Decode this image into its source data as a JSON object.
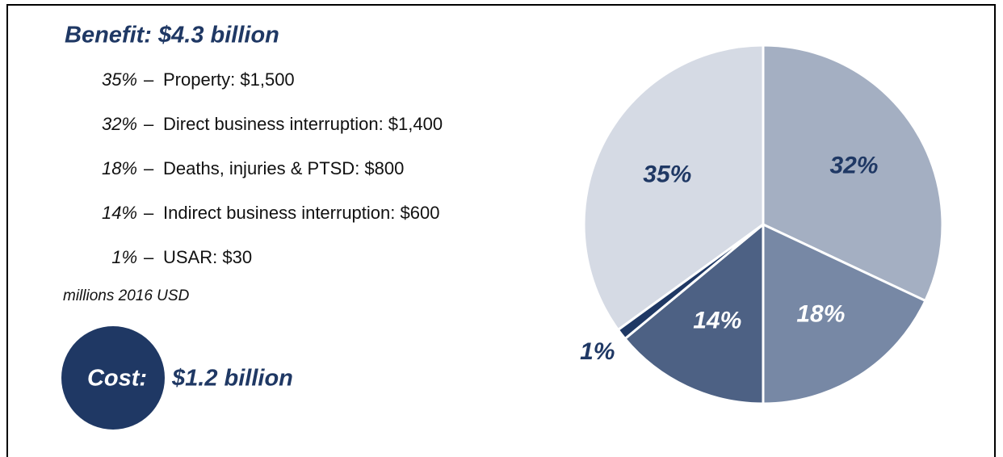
{
  "chart_data": {
    "type": "pie",
    "title": "Benefit: $4.3 billion",
    "categories": [
      "Property: $1,500",
      "Direct business interruption: $1,400",
      "Deaths, injuries & PTSD: $800",
      "Indirect business interruption: $600",
      "USAR: $30"
    ],
    "values": [
      35,
      32,
      18,
      14,
      1
    ],
    "value_labels": [
      "35%",
      "32%",
      "18%",
      "14%",
      "1%"
    ],
    "colors": [
      "#d5dae4",
      "#a4afc2",
      "#7788a5",
      "#4d6184",
      "#1f3864"
    ],
    "separator": "–",
    "note": "millions 2016 USD",
    "cost": {
      "label": "Cost:",
      "value": "$1.2 billion"
    }
  }
}
